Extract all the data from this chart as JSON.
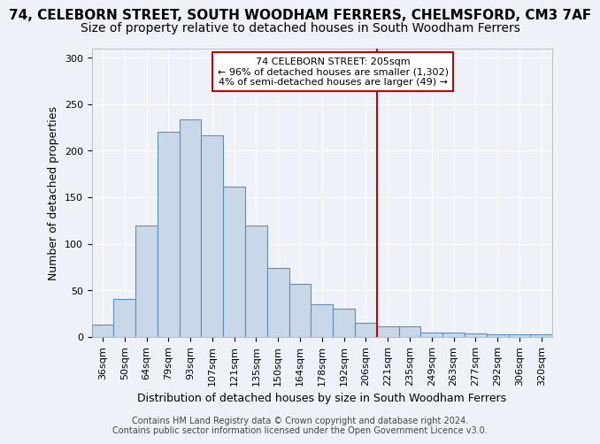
{
  "title": "74, CELEBORN STREET, SOUTH WOODHAM FERRERS, CHELMSFORD, CM3 7AF",
  "subtitle": "Size of property relative to detached houses in South Woodham Ferrers",
  "xlabel": "Distribution of detached houses by size in South Woodham Ferrers",
  "ylabel": "Number of detached properties",
  "categories": [
    "36sqm",
    "50sqm",
    "64sqm",
    "79sqm",
    "93sqm",
    "107sqm",
    "121sqm",
    "135sqm",
    "150sqm",
    "164sqm",
    "178sqm",
    "192sqm",
    "206sqm",
    "221sqm",
    "235sqm",
    "249sqm",
    "263sqm",
    "277sqm",
    "292sqm",
    "306sqm",
    "320sqm"
  ],
  "values": [
    13,
    41,
    120,
    220,
    234,
    216,
    161,
    120,
    74,
    57,
    35,
    30,
    15,
    11,
    11,
    5,
    5,
    4,
    3,
    3,
    3
  ],
  "bar_color": "#c8d8e8",
  "bar_edge_color": "#5a8fbf",
  "vline_idx": 12,
  "annotation_title": "74 CELEBORN STREET: 205sqm",
  "annotation_line1": "← 96% of detached houses are smaller (1,302)",
  "annotation_line2": "4% of semi-detached houses are larger (49) →",
  "annotation_box_color": "#ffffff",
  "annotation_box_edge": "#cc0000",
  "ylim": [
    0,
    310
  ],
  "footer_line1": "Contains HM Land Registry data © Crown copyright and database right 2024.",
  "footer_line2": "Contains public sector information licensed under the Open Government Licence v3.0.",
  "background_color": "#eef2f8",
  "grid_color": "#ffffff",
  "title_fontsize": 11,
  "subtitle_fontsize": 10,
  "axis_label_fontsize": 9,
  "tick_fontsize": 8,
  "footer_fontsize": 7
}
